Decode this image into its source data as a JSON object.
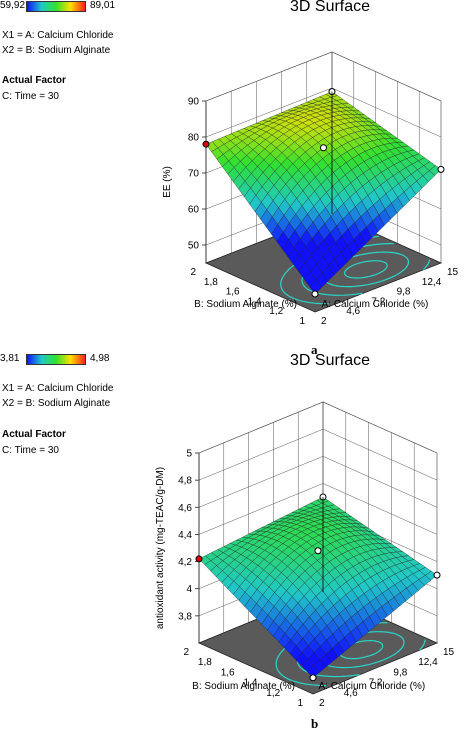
{
  "panels": [
    {
      "legend": {
        "min": "59,92",
        "max": "89,01"
      },
      "title": "3D Surface",
      "factors": {
        "x1": "X1 = A: Calcium Chloride",
        "x2": "X2 = B: Sodium Alginate"
      },
      "actual_factor": {
        "title": "Actual Factor",
        "value": "C: Time = 30"
      },
      "letter": "a"
    },
    {
      "legend": {
        "min": "3,81",
        "max": "4,98"
      },
      "title": "3D Surface",
      "factors": {
        "x1": "X1 = A: Calcium Chloride",
        "x2": "X2 = B: Sodium Alginate"
      },
      "actual_factor": {
        "title": "Actual Factor",
        "value": "C: Time = 30"
      },
      "letter": "b"
    }
  ],
  "colors": {
    "low": "#1010ff",
    "mid": "#20c8c8",
    "high": "#ff2020",
    "floor": "#5a5a5a",
    "contour": "#27d6c8",
    "mesh": "#202020"
  },
  "chart_data": [
    {
      "type": "surface3d",
      "title": "3D Surface",
      "xlabel": "A: Calcium Chloride (%)",
      "ylabel": "B: Sodium Alginate (%)",
      "zlabel": "EE (%)",
      "x_ticks": [
        "2",
        "4,6",
        "7,2",
        "9,8",
        "12,4",
        "15"
      ],
      "y_ticks": [
        "1",
        "1,2",
        "1,4",
        "1,6",
        "1,8",
        "2"
      ],
      "z_ticks": [
        "50",
        "60",
        "70",
        "80",
        "90"
      ],
      "xlim": [
        2,
        15
      ],
      "ylim": [
        1,
        2
      ],
      "zlim": [
        45,
        90
      ],
      "corner_values": {
        "A2_B1": 50,
        "A15_B1": 71,
        "A2_B2": 78,
        "A15_B2": 79
      },
      "center_value": 77,
      "color_range": [
        59.92,
        89.01
      ]
    },
    {
      "type": "surface3d",
      "title": "3D Surface",
      "xlabel": "A: Calcium Chloride (%)",
      "ylabel": "B: Sodium Alginate (%)",
      "zlabel": "antioxidant activity (mg-TEAC/g-DM)",
      "x_ticks": [
        "2",
        "4,6",
        "7,2",
        "9,8",
        "12,4",
        "15"
      ],
      "y_ticks": [
        "1",
        "1,2",
        "1,4",
        "1,6",
        "1,8",
        "2"
      ],
      "z_ticks": [
        "3,8",
        "4",
        "4,2",
        "4,4",
        "4,6",
        "4,8",
        "5"
      ],
      "xlim": [
        2,
        15
      ],
      "ylim": [
        1,
        2
      ],
      "zlim": [
        3.6,
        5
      ],
      "corner_values": {
        "A2_B1": 3.72,
        "A15_B1": 4.1,
        "A2_B2": 4.22,
        "A15_B2": 4.3
      },
      "center_value": 4.28,
      "color_range": [
        3.81,
        4.98
      ]
    }
  ]
}
